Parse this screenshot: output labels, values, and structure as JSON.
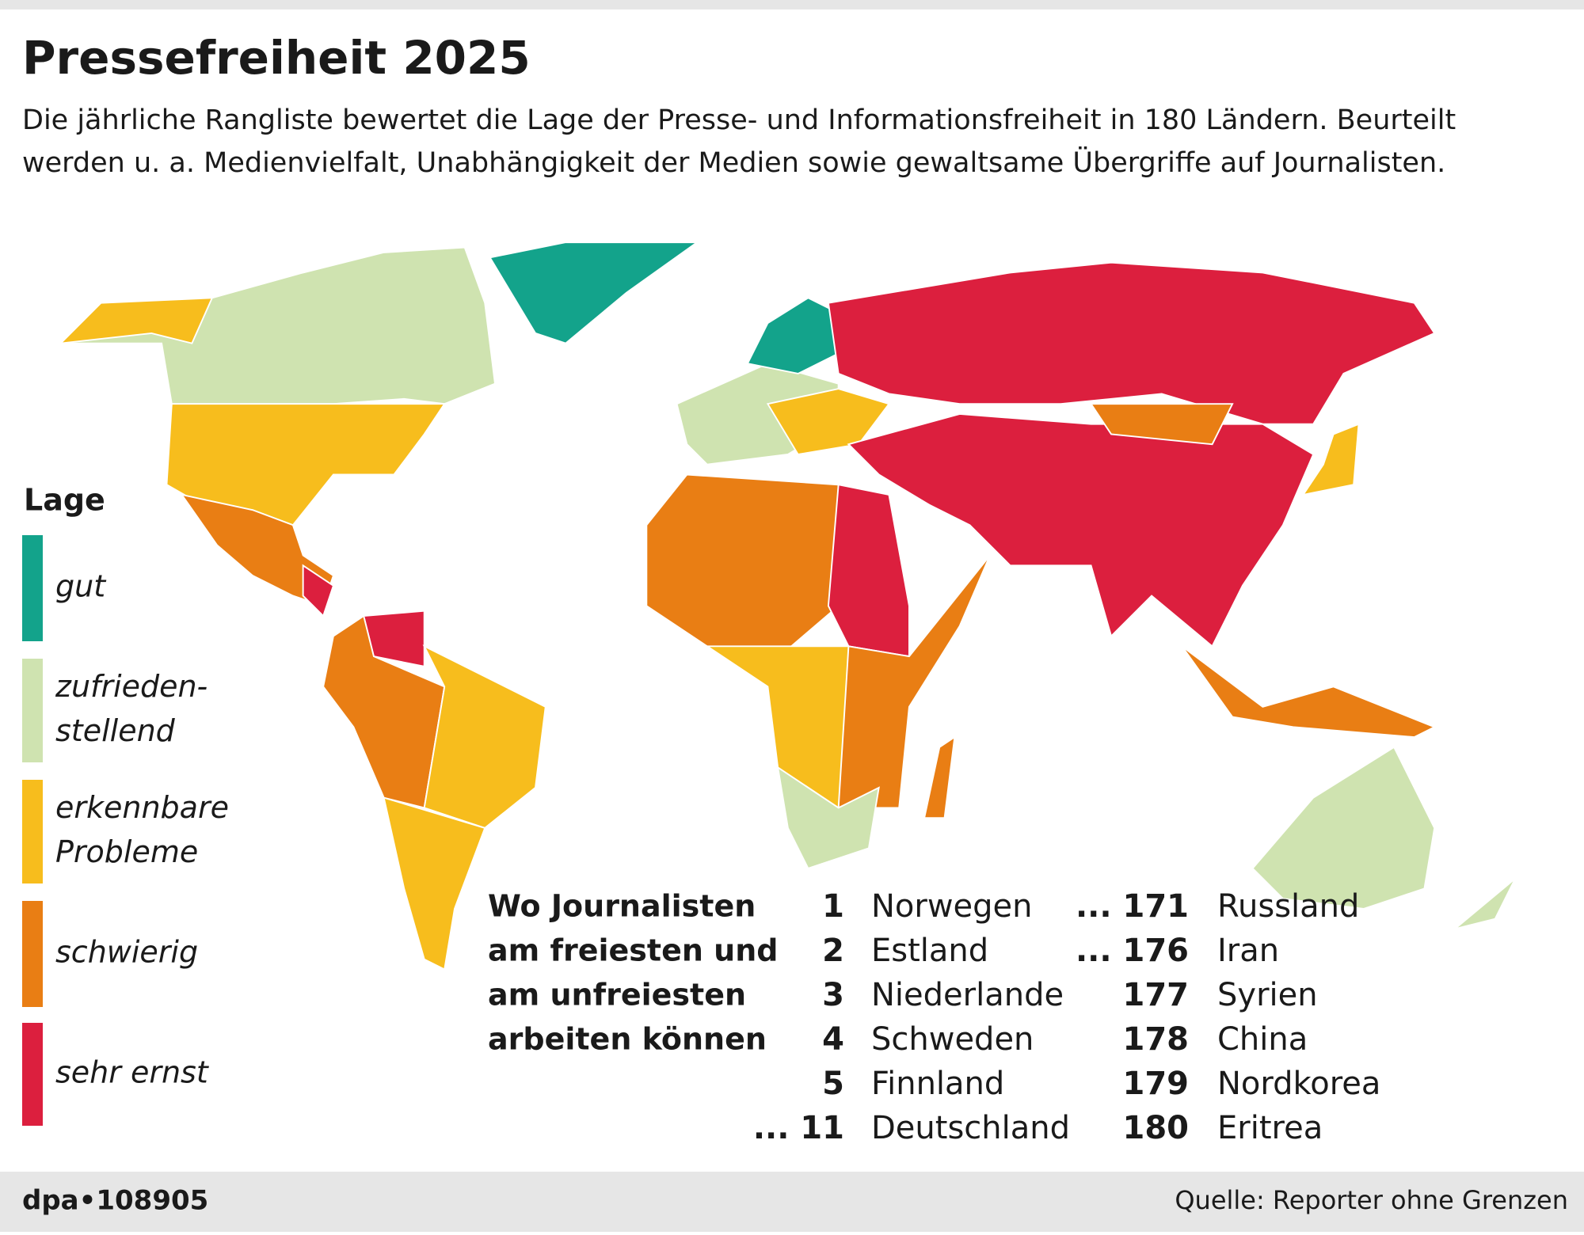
{
  "header": {
    "title": "Pressefreiheit 2025",
    "subtitle_lines": [
      "Die jährliche Rangliste bewertet die Lage der Presse- und Informationsfreiheit in 180 Ländern. Beurteilt",
      "werden u. a. Medienvielfalt, Unabhängigkeit der Medien sowie gewaltsame Übergriffe auf Journalisten."
    ]
  },
  "legend": {
    "title": "Lage",
    "items": [
      {
        "lines": [
          "gut"
        ],
        "color": "#13a38b"
      },
      {
        "lines": [
          "zufrieden-",
          "stellend"
        ],
        "color": "#cfe3b0"
      },
      {
        "lines": [
          "erkennbare",
          "Probleme"
        ],
        "color": "#f7bd1d"
      },
      {
        "lines": [
          "schwierig"
        ],
        "color": "#e97e14"
      },
      {
        "lines": [
          "sehr ernst"
        ],
        "color": "#dc1f3e"
      }
    ]
  },
  "ranking": {
    "heading_lines": [
      "Wo Journalisten",
      "am freiesten und",
      "am unfreiesten",
      "arbeiten können"
    ],
    "best": [
      {
        "rank": "1",
        "country": "Norwegen"
      },
      {
        "rank": "2",
        "country": "Estland"
      },
      {
        "rank": "3",
        "country": "Niederlande"
      },
      {
        "rank": "4",
        "country": "Schweden"
      },
      {
        "rank": "5",
        "country": "Finnland"
      },
      {
        "rank": "... 11",
        "country": "Deutschland"
      }
    ],
    "worst": [
      {
        "rank": "... 171",
        "country": "Russland"
      },
      {
        "rank": "... 176",
        "country": "Iran"
      },
      {
        "rank": "177",
        "country": "Syrien"
      },
      {
        "rank": "178",
        "country": "China"
      },
      {
        "rank": "179",
        "country": "Nordkorea"
      },
      {
        "rank": "180",
        "country": "Eritrea"
      }
    ]
  },
  "footer": {
    "credit": "dpa•108905",
    "source": "Quelle: Reporter ohne Grenzen"
  }
}
